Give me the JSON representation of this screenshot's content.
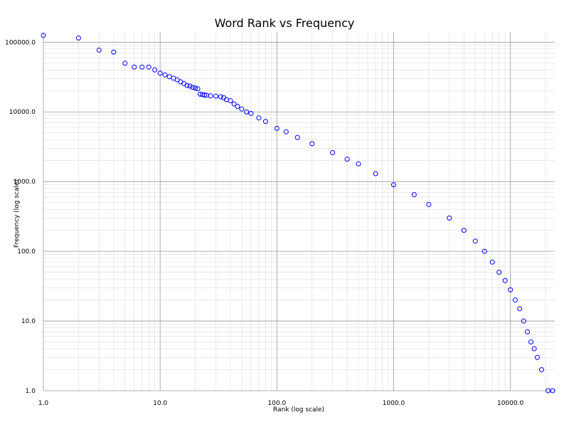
{
  "chart_data": {
    "type": "scatter",
    "title": "Word Rank vs Frequency",
    "xlabel": "Rank (log scale)",
    "ylabel": "Frequency (log scale)",
    "xscale": "log",
    "yscale": "log",
    "xlim": [
      1,
      24000
    ],
    "ylim": [
      1,
      140000
    ],
    "x_ticks": [
      "1.0",
      "10.0",
      "100.0",
      "1000.0",
      "10000.0"
    ],
    "y_ticks": [
      "1.0",
      "10.0",
      "100.0",
      "1000.0",
      "10000.0",
      "100000.0"
    ],
    "grid": true,
    "marker": "open-circle",
    "marker_color": "#0000ff",
    "points": [
      [
        1,
        125000
      ],
      [
        2,
        115000
      ],
      [
        3,
        77000
      ],
      [
        4,
        72000
      ],
      [
        5,
        50000
      ],
      [
        6,
        44000
      ],
      [
        7,
        44000
      ],
      [
        8,
        44000
      ],
      [
        9,
        40000
      ],
      [
        10,
        36000
      ],
      [
        11,
        34000
      ],
      [
        12,
        32000
      ],
      [
        13,
        30500
      ],
      [
        14,
        29000
      ],
      [
        15,
        27000
      ],
      [
        16,
        25500
      ],
      [
        17,
        24000
      ],
      [
        18,
        23500
      ],
      [
        19,
        22500
      ],
      [
        20,
        22000
      ],
      [
        21,
        21500
      ],
      [
        22,
        18000
      ],
      [
        23,
        17700
      ],
      [
        24,
        17500
      ],
      [
        25,
        17300
      ],
      [
        27,
        17000
      ],
      [
        30,
        16800
      ],
      [
        33,
        16500
      ],
      [
        35,
        16000
      ],
      [
        37,
        15000
      ],
      [
        40,
        14500
      ],
      [
        43,
        13000
      ],
      [
        46,
        12000
      ],
      [
        50,
        11000
      ],
      [
        55,
        10000
      ],
      [
        60,
        9500
      ],
      [
        70,
        8200
      ],
      [
        80,
        7300
      ],
      [
        100,
        5800
      ],
      [
        120,
        5200
      ],
      [
        150,
        4300
      ],
      [
        200,
        3500
      ],
      [
        300,
        2600
      ],
      [
        400,
        2100
      ],
      [
        500,
        1800
      ],
      [
        700,
        1300
      ],
      [
        1000,
        900
      ],
      [
        1500,
        650
      ],
      [
        2000,
        470
      ],
      [
        3000,
        300
      ],
      [
        4000,
        200
      ],
      [
        5000,
        140
      ],
      [
        6000,
        100
      ],
      [
        7000,
        70
      ],
      [
        8000,
        50
      ],
      [
        9000,
        38
      ],
      [
        10000,
        28
      ],
      [
        11000,
        20
      ],
      [
        12000,
        15
      ],
      [
        13000,
        10
      ],
      [
        14000,
        7
      ],
      [
        15000,
        5
      ],
      [
        16000,
        4
      ],
      [
        17000,
        3
      ],
      [
        18500,
        2
      ],
      [
        21000,
        1
      ],
      [
        23000,
        1
      ]
    ]
  }
}
